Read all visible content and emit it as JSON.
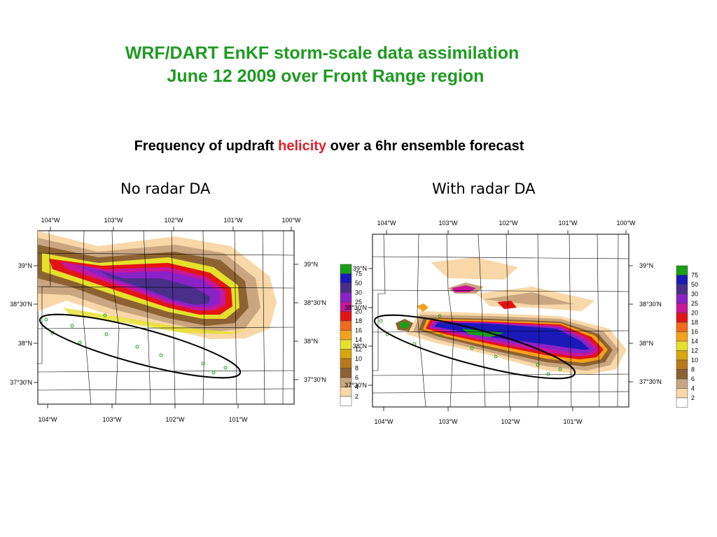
{
  "titles": {
    "line1": "WRF/DART EnKF storm-scale data assimilation",
    "line2": "June 12 2009 over Front Range region"
  },
  "subtitle": {
    "prefix": "Frequency of updraft ",
    "highlight": "helicity",
    "suffix": " over a 6hr ensemble forecast"
  },
  "panels": [
    {
      "label": "No radar DA",
      "lon_labels": [
        "104°W",
        "103°W",
        "102°W",
        "101°W",
        "100°W"
      ],
      "lon_labels_bottom": [
        "104°W",
        "103°W",
        "102°W",
        "101°W"
      ],
      "lat_labels_left": [
        "39°N",
        "38°30'N",
        "38°N",
        "37°30'N"
      ],
      "lat_labels_right": [
        "39°N",
        "38°30'N",
        "38°N",
        "37°30'N"
      ]
    },
    {
      "label": "With radar DA",
      "lon_labels": [
        "104°W",
        "103°W",
        "102°W",
        "101°W",
        "100°W"
      ],
      "lon_labels_bottom": [
        "104°W",
        "103°W",
        "102°W",
        "101°W"
      ],
      "lat_labels_left": [
        "39°N",
        "38°30'N",
        "38°N",
        "37°30'N"
      ],
      "lat_labels_right": [
        "39°N",
        "38°30'N",
        "38°N",
        "37°30'N"
      ]
    }
  ],
  "legend": {
    "levels": [
      "75",
      "50",
      "30",
      "25",
      "20",
      "18",
      "16",
      "14",
      "12",
      "10",
      "8",
      "6",
      "4",
      "2"
    ],
    "colors": [
      "#18a018",
      "#1a1ab8",
      "#4a2f8a",
      "#8b22c8",
      "#c8169a",
      "#e41414",
      "#f26a1a",
      "#f5a21a",
      "#e6e02a",
      "#d8a60c",
      "#b8781a",
      "#8c6232",
      "#c9a680",
      "#f8d8a8",
      "#ffffff"
    ]
  }
}
